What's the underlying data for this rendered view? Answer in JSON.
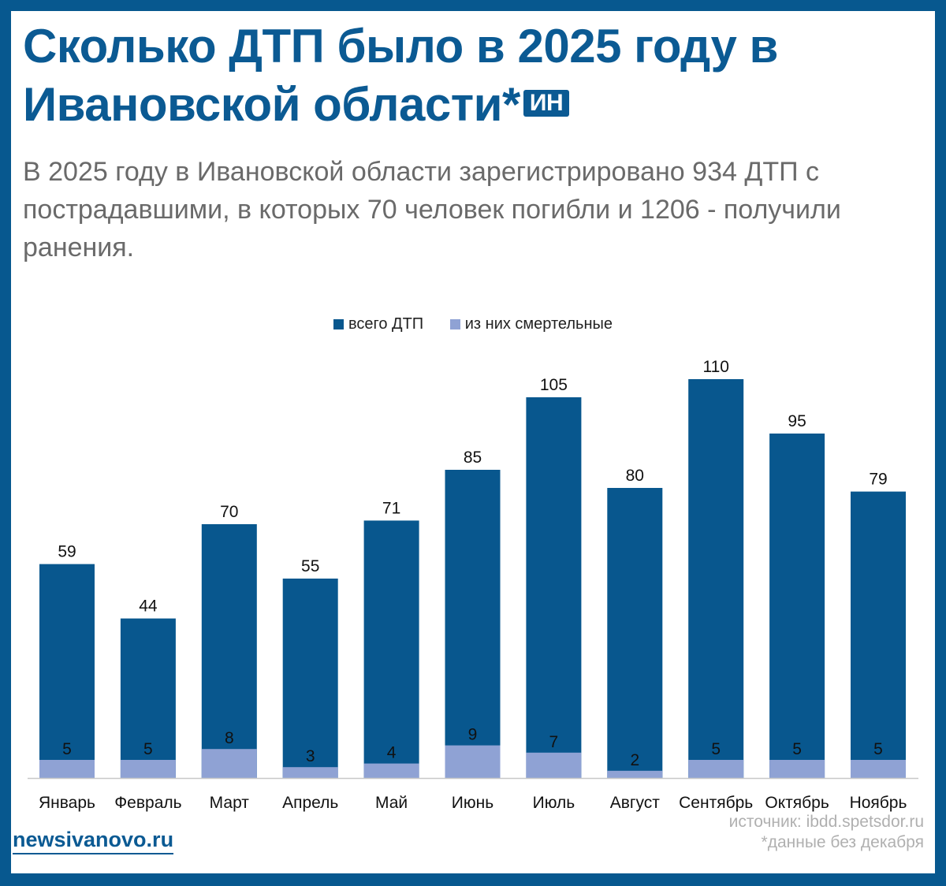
{
  "title": "Сколько ДТП было в 2025 году в Ивановской области*",
  "logo": "ИН",
  "subtitle": "В 2025 году в Ивановской области зарегистрировано 934 ДТП с пострадавшими, в которых 70 человек погибли и 1206 - получили ранения.",
  "footer": {
    "site": "newsivanovo.ru",
    "source": "источник: ibdd.spetsdor.ru",
    "note": "*данные без декабря"
  },
  "colors": {
    "total": "#08578e",
    "fatal": "#8fa2d4"
  },
  "chart_data": {
    "type": "bar",
    "categories": [
      "Январь",
      "Февраль",
      "Март",
      "Апрель",
      "Май",
      "Июнь",
      "Июль",
      "Август",
      "Сентябрь",
      "Октябрь",
      "Ноябрь"
    ],
    "series": [
      {
        "name": "всего ДТП",
        "values": [
          59,
          44,
          70,
          55,
          71,
          85,
          105,
          80,
          110,
          95,
          79
        ]
      },
      {
        "name": "из них смертельные",
        "values": [
          5,
          5,
          8,
          3,
          4,
          9,
          7,
          2,
          5,
          5,
          5
        ]
      }
    ],
    "ylim": [
      0,
      110
    ],
    "legend": "top-center",
    "grid": false
  }
}
